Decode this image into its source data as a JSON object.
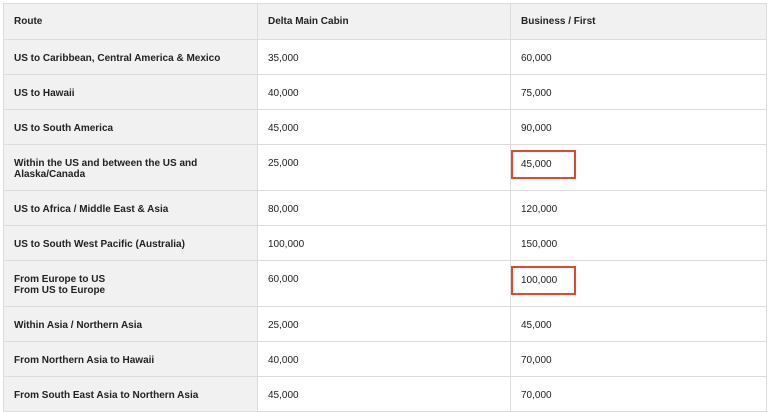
{
  "table": {
    "headers": [
      "Route",
      "Delta Main Cabin",
      "Business / First"
    ],
    "rows": [
      {
        "route": [
          "US to Caribbean, Central America & Mexico"
        ],
        "main": "35,000",
        "business": "60,000",
        "highlight": false
      },
      {
        "route": [
          "US to Hawaii"
        ],
        "main": "40,000",
        "business": "75,000",
        "highlight": false
      },
      {
        "route": [
          "US to South America"
        ],
        "main": "45,000",
        "business": "90,000",
        "highlight": false
      },
      {
        "route": [
          "Within the US and between the US and",
          "Alaska/Canada"
        ],
        "main": "25,000",
        "business": "45,000",
        "highlight": true
      },
      {
        "route": [
          "US to Africa / Middle East & Asia"
        ],
        "main": "80,000",
        "business": "120,000",
        "highlight": false
      },
      {
        "route": [
          "US to South West Pacific (Australia)"
        ],
        "main": "100,000",
        "business": "150,000",
        "highlight": false
      },
      {
        "route": [
          "From Europe to US",
          "From US to Europe"
        ],
        "main": "60,000",
        "business": "100,000",
        "highlight": true
      },
      {
        "route": [
          "Within Asia / Northern Asia"
        ],
        "main": "25,000",
        "business": "45,000",
        "highlight": false
      },
      {
        "route": [
          "From Northern Asia to Hawaii"
        ],
        "main": "40,000",
        "business": "70,000",
        "highlight": false
      },
      {
        "route": [
          "From South East Asia to Northern Asia"
        ],
        "main": "45,000",
        "business": "70,000",
        "highlight": false
      }
    ]
  },
  "colors": {
    "highlight_border": "#e0492f",
    "route_column_bg": "#f1f1f1",
    "grid_line": "#dcdcdc"
  }
}
